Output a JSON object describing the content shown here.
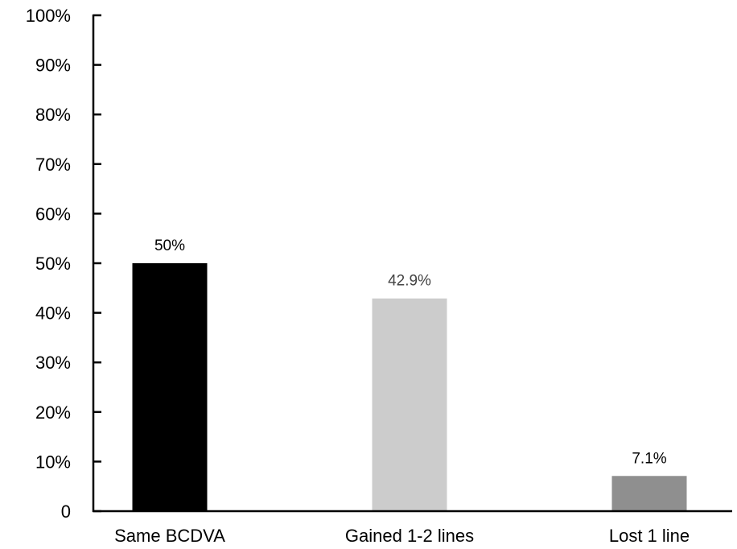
{
  "chart_data": {
    "type": "bar",
    "categories": [
      "Same BCDVA",
      "Gained 1-2 lines",
      "Lost 1 line"
    ],
    "values": [
      50,
      42.9,
      7.1
    ],
    "value_labels": [
      "50%",
      "42.9%",
      "7.1%"
    ],
    "bar_colors": [
      "#000000",
      "#cccccc",
      "#8f8f8f"
    ],
    "label_colors": [
      "#000000",
      "#444444",
      "#000000"
    ],
    "ylim": [
      0,
      100
    ],
    "yticks": [
      0,
      10,
      20,
      30,
      40,
      50,
      60,
      70,
      80,
      90,
      100
    ],
    "ytick_labels": [
      "0",
      "10%",
      "20%",
      "30%",
      "40%",
      "50%",
      "60%",
      "70%",
      "80%",
      "90%",
      "100%"
    ],
    "grid": false,
    "legend": "none",
    "title": "",
    "xlabel": "",
    "ylabel": ""
  }
}
